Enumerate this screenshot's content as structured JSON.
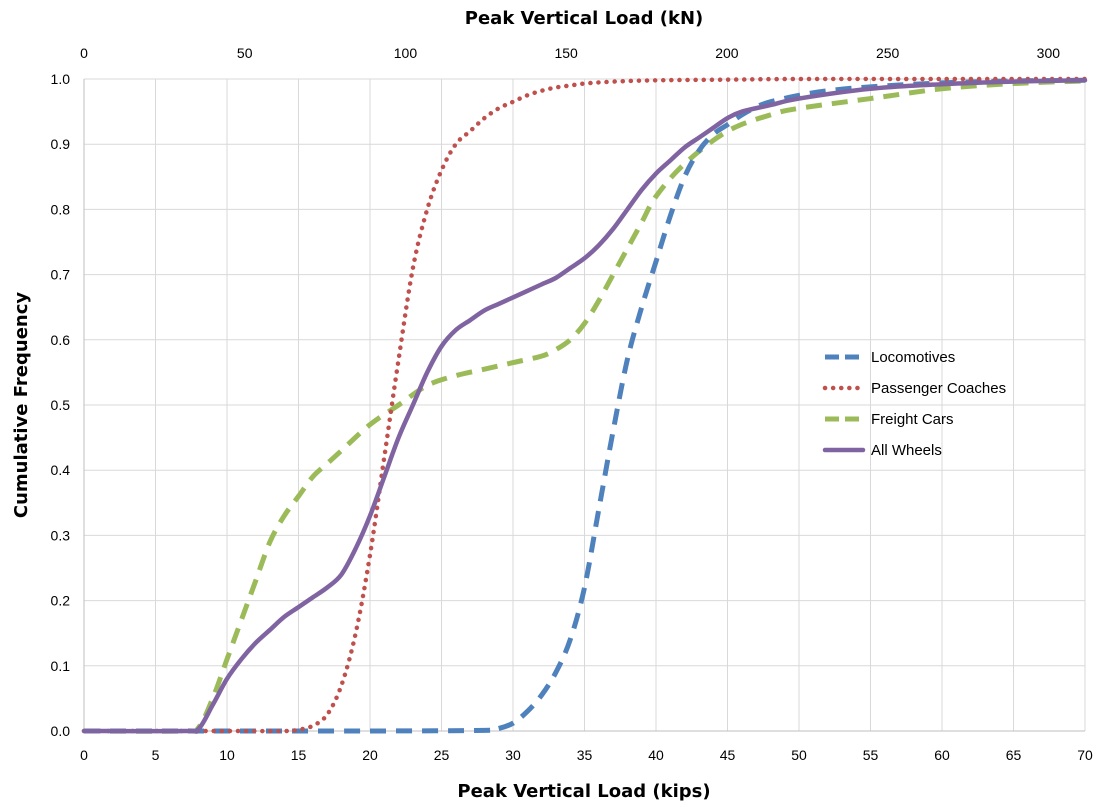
{
  "chart_data": {
    "type": "line",
    "title": "",
    "xlabel": "Peak Vertical Load (kips)",
    "x2label": "Peak Vertical Load (kN)",
    "ylabel": "Cumulative Frequency",
    "xlim": [
      0,
      70
    ],
    "x2lim": [
      0,
      311.4
    ],
    "ylim": [
      0,
      1.0
    ],
    "xticks": [
      "0",
      "5",
      "10",
      "15",
      "20",
      "25",
      "30",
      "35",
      "40",
      "45",
      "50",
      "55",
      "60",
      "65",
      "70"
    ],
    "x2ticks": [
      "0",
      "50",
      "100",
      "150",
      "200",
      "250",
      "300"
    ],
    "yticks": [
      "0.0",
      "0.1",
      "0.2",
      "0.3",
      "0.4",
      "0.5",
      "0.6",
      "0.7",
      "0.8",
      "0.9",
      "1.0"
    ],
    "grid": true,
    "legend_position": "right-middle",
    "series": [
      {
        "name": "Locomotives",
        "color": "#4F81BD",
        "style": "dashed",
        "x": [
          0,
          10,
          20,
          28,
          29,
          30,
          31,
          32,
          33,
          34,
          35,
          36,
          37,
          38,
          39,
          40,
          41,
          42,
          43,
          44,
          45,
          46,
          47,
          48,
          50,
          52,
          55,
          60,
          65,
          70
        ],
        "y": [
          0.0,
          0.0,
          0.0,
          0.001,
          0.004,
          0.012,
          0.03,
          0.055,
          0.09,
          0.14,
          0.22,
          0.34,
          0.46,
          0.57,
          0.65,
          0.72,
          0.79,
          0.85,
          0.89,
          0.915,
          0.93,
          0.945,
          0.957,
          0.965,
          0.975,
          0.982,
          0.988,
          0.994,
          0.997,
          0.998
        ]
      },
      {
        "name": "Passenger Coaches",
        "color": "#C0504D",
        "style": "dotted",
        "x": [
          0,
          10,
          14,
          15,
          16,
          17,
          18,
          19,
          20,
          21,
          22,
          23,
          24,
          25,
          26,
          27,
          28,
          29,
          30,
          31,
          32,
          33,
          34,
          35,
          37,
          40,
          45,
          50,
          60,
          70
        ],
        "y": [
          0.0,
          0.0,
          0.0,
          0.002,
          0.008,
          0.025,
          0.07,
          0.15,
          0.27,
          0.42,
          0.57,
          0.71,
          0.8,
          0.86,
          0.9,
          0.92,
          0.94,
          0.955,
          0.965,
          0.975,
          0.982,
          0.987,
          0.99,
          0.993,
          0.996,
          0.998,
          0.999,
          1.0,
          1.0,
          1.0
        ]
      },
      {
        "name": "Freight Cars",
        "color": "#9BBB59",
        "style": "dashed",
        "x": [
          0,
          7,
          8,
          9,
          10,
          11,
          12,
          13,
          14,
          15,
          16,
          17,
          18,
          20,
          22,
          24,
          26,
          28,
          30,
          32,
          33,
          34,
          35,
          36,
          37,
          38,
          39,
          40,
          42,
          45,
          48,
          50,
          55,
          60,
          65,
          70
        ],
        "y": [
          0.0,
          0.0,
          0.005,
          0.05,
          0.11,
          0.17,
          0.23,
          0.29,
          0.33,
          0.36,
          0.39,
          0.41,
          0.43,
          0.47,
          0.5,
          0.53,
          0.545,
          0.555,
          0.565,
          0.575,
          0.585,
          0.6,
          0.625,
          0.66,
          0.7,
          0.74,
          0.78,
          0.82,
          0.87,
          0.92,
          0.945,
          0.955,
          0.97,
          0.985,
          0.993,
          0.997
        ]
      },
      {
        "name": "All Wheels",
        "color": "#8064A2",
        "style": "solid",
        "x": [
          0,
          7,
          8,
          9,
          10,
          11,
          12,
          13,
          14,
          15,
          16,
          17,
          18,
          19,
          20,
          21,
          22,
          23,
          24,
          25,
          26,
          27,
          28,
          29,
          30,
          31,
          32,
          33,
          34,
          35,
          36,
          37,
          38,
          39,
          40,
          41,
          42,
          43,
          44,
          45,
          46,
          48,
          50,
          55,
          60,
          65,
          70
        ],
        "y": [
          0.0,
          0.0,
          0.003,
          0.04,
          0.08,
          0.11,
          0.135,
          0.155,
          0.175,
          0.19,
          0.205,
          0.22,
          0.24,
          0.28,
          0.33,
          0.39,
          0.45,
          0.5,
          0.55,
          0.59,
          0.615,
          0.63,
          0.645,
          0.655,
          0.665,
          0.675,
          0.685,
          0.695,
          0.71,
          0.725,
          0.745,
          0.77,
          0.8,
          0.83,
          0.855,
          0.875,
          0.895,
          0.91,
          0.925,
          0.94,
          0.95,
          0.96,
          0.97,
          0.985,
          0.992,
          0.996,
          0.998
        ]
      }
    ]
  }
}
